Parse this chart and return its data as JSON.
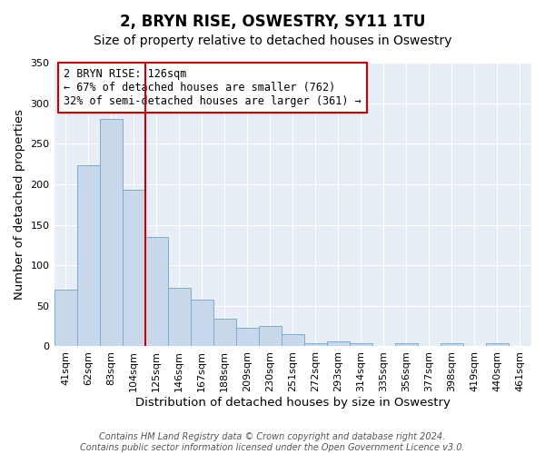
{
  "title": "2, BRYN RISE, OSWESTRY, SY11 1TU",
  "subtitle": "Size of property relative to detached houses in Oswestry",
  "xlabel": "Distribution of detached houses by size in Oswestry",
  "ylabel": "Number of detached properties",
  "categories": [
    "41sqm",
    "62sqm",
    "83sqm",
    "104sqm",
    "125sqm",
    "146sqm",
    "167sqm",
    "188sqm",
    "209sqm",
    "230sqm",
    "251sqm",
    "272sqm",
    "293sqm",
    "314sqm",
    "335sqm",
    "356sqm",
    "377sqm",
    "398sqm",
    "419sqm",
    "440sqm",
    "461sqm"
  ],
  "values": [
    70,
    223,
    280,
    193,
    135,
    72,
    58,
    34,
    23,
    25,
    15,
    4,
    6,
    4,
    0,
    4,
    1,
    4,
    1,
    4,
    1
  ],
  "bar_color": "#c8d8ea",
  "bar_edge_color": "#7aadcf",
  "vline_x_index": 3,
  "annotation_text_line1": "2 BRYN RISE: 126sqm",
  "annotation_text_line2": "← 67% of detached houses are smaller (762)",
  "annotation_text_line3": "32% of semi-detached houses are larger (361) →",
  "annotation_box_color": "#ffffff",
  "annotation_box_edge_color": "#cc0000",
  "vline_color": "#cc0000",
  "ylim": [
    0,
    350
  ],
  "yticks": [
    0,
    50,
    100,
    150,
    200,
    250,
    300,
    350
  ],
  "footer_line1": "Contains HM Land Registry data © Crown copyright and database right 2024.",
  "footer_line2": "Contains public sector information licensed under the Open Government Licence v3.0.",
  "background_color": "#ffffff",
  "plot_bg_color": "#e8eef5",
  "grid_color": "#ffffff",
  "title_fontsize": 12,
  "subtitle_fontsize": 10,
  "axis_label_fontsize": 9.5,
  "tick_fontsize": 8,
  "footer_fontsize": 7,
  "annotation_fontsize": 8.5
}
